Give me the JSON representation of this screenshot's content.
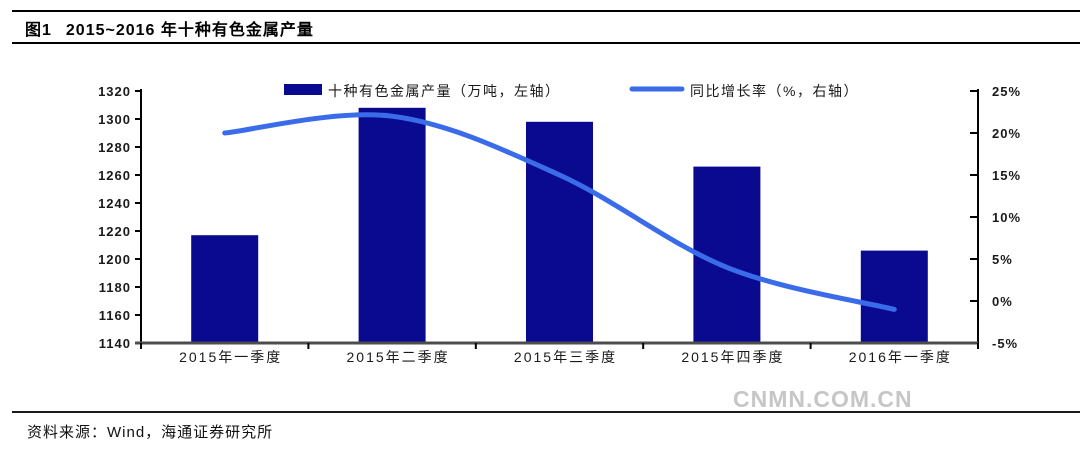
{
  "header": {
    "figure_label": "图1",
    "title": "2015~2016 年十种有色金属产量"
  },
  "source": {
    "text": "资料来源：Wind，海通证券研究所"
  },
  "watermark": {
    "text": "CNMN.COM.CN",
    "color": "#c6c6c6"
  },
  "colors": {
    "bar": "#0A0A90",
    "line": "#3A6CEA",
    "axis": "#000000",
    "baseline": "#4D4D4D",
    "tick_text": "#1a1a1a"
  },
  "chart_data": {
    "type": "bar+line",
    "title": "2015~2016 年十种有色金属产量",
    "categories": [
      "2015年一季度",
      "2015年二季度",
      "2015年三季度",
      "2015年四季度",
      "2016年一季度"
    ],
    "series": [
      {
        "name": "十种有色金属产量（万吨，左轴）",
        "type": "bar",
        "axis": "left",
        "color": "#0A0A90",
        "values": [
          1217,
          1308,
          1298,
          1266,
          1206
        ]
      },
      {
        "name": "同比增长率（%，右轴）",
        "type": "line",
        "axis": "right",
        "color": "#3A6CEA",
        "values": [
          20,
          22,
          15,
          4,
          -1
        ]
      }
    ],
    "left_axis": {
      "min": 1140,
      "max": 1320,
      "step": 20,
      "tick_labels": [
        "1320",
        "1300",
        "1280",
        "1260",
        "1240",
        "1220",
        "1200",
        "1180",
        "1160",
        "1140"
      ]
    },
    "right_axis": {
      "min": -5,
      "max": 25,
      "step": 5,
      "tick_labels": [
        "25%",
        "20%",
        "15%",
        "10%",
        "5%",
        "0%",
        "-5%"
      ]
    },
    "legend_position": "top",
    "grid": false,
    "smooth_line": true
  }
}
